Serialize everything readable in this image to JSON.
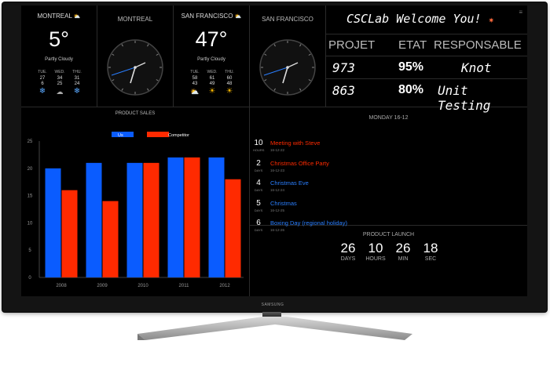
{
  "brand": "SAMSUNG",
  "weather": [
    {
      "city": "MONTREAL",
      "temp": "5°",
      "desc": "Partly Cloudy",
      "forecast": [
        {
          "day": "TUE.",
          "high": "27",
          "low": "6",
          "icon": "snowflake-icon"
        },
        {
          "day": "WED.",
          "high": "34",
          "low": "25",
          "icon": "fog-icon"
        },
        {
          "day": "THU.",
          "high": "31",
          "low": "24",
          "icon": "snowflake-icon"
        }
      ]
    },
    {
      "city": "SAN FRANCISCO",
      "temp": "47°",
      "desc": "Partly Cloudy",
      "forecast": [
        {
          "day": "TUE.",
          "high": "58",
          "low": "43",
          "icon": "partly-cloudy-icon"
        },
        {
          "day": "WED.",
          "high": "61",
          "low": "49",
          "icon": "sun-icon"
        },
        {
          "day": "THU.",
          "high": "60",
          "low": "48",
          "icon": "sun-icon"
        }
      ]
    }
  ],
  "clocks": [
    {
      "city": "MONTREAL"
    },
    {
      "city": "SAN FRANCISCO"
    }
  ],
  "welcome": {
    "title": "CSCLab Welcome You!",
    "icon": "party-popper-icon"
  },
  "projects_table": {
    "headers": [
      "PROJET",
      "ETAT",
      "RESPONSABLE"
    ],
    "rows": [
      {
        "id": "973",
        "status": "95%",
        "owner": "Knot"
      },
      {
        "id": "863",
        "status": "80%",
        "owner": "Unit Testing"
      }
    ]
  },
  "chart_data": {
    "type": "bar",
    "title": "PRODUCT SALES",
    "categories": [
      "2008",
      "2009",
      "2010",
      "2011",
      "2012"
    ],
    "series": [
      {
        "name": "Us",
        "color": "#0a5cff",
        "values": [
          20,
          21,
          21,
          22,
          22
        ]
      },
      {
        "name": "Competitor",
        "color": "#ff2a00",
        "values": [
          16,
          14,
          21,
          22,
          18
        ]
      }
    ],
    "ylim": [
      0,
      25
    ],
    "yticks": [
      0,
      5,
      10,
      15,
      20,
      25
    ],
    "legend": "top-center",
    "grid": false
  },
  "calendar": {
    "header": "MONDAY 16-12",
    "events": [
      {
        "num": "10",
        "unit": "HOURS",
        "title": "Meeting with Steve",
        "date": "16-12-22",
        "color": "#ff2a00"
      },
      {
        "num": "2",
        "unit": "DAYS",
        "title": "Christmas Office Party",
        "date": "16-12-23",
        "color": "#ff2a00"
      },
      {
        "num": "4",
        "unit": "DAYS",
        "title": "Christmas Eve",
        "date": "16-12-24",
        "color": "#2a7fff"
      },
      {
        "num": "5",
        "unit": "DAYS",
        "title": "Christmas",
        "date": "16-12-25",
        "color": "#2a7fff"
      },
      {
        "num": "6",
        "unit": "DAYS",
        "title": "Boxing Day (regional holiday)",
        "date": "16-12-26",
        "color": "#2a7fff"
      }
    ]
  },
  "countdown": {
    "title": "PRODUCT LAUNCH",
    "parts": [
      {
        "value": "26",
        "label": "DAYS"
      },
      {
        "value": "10",
        "label": "HOURS"
      },
      {
        "value": "26",
        "label": "MIN"
      },
      {
        "value": "18",
        "label": "SEC"
      }
    ]
  }
}
